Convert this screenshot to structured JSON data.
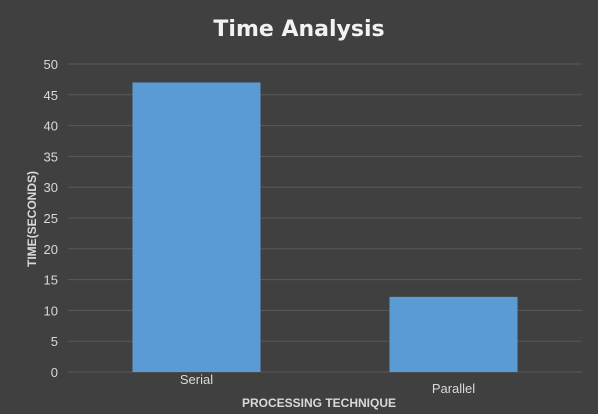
{
  "colors": {
    "background": "#404040",
    "bar": "#5b9bd5",
    "gridline": "#595959",
    "text": "#d9d9d9",
    "title": "#f2f2f2"
  },
  "chart_data": {
    "type": "bar",
    "title": "Time Analysis",
    "xlabel": "PROCESSING TECHNIQUE",
    "ylabel": "TIME(SECONDS)",
    "categories": [
      "Serial",
      "Parallel"
    ],
    "values": [
      47,
      12.2
    ],
    "ylim": [
      0,
      50
    ],
    "yticks": [
      0,
      5,
      10,
      15,
      20,
      25,
      30,
      35,
      40,
      45,
      50
    ],
    "grid": true,
    "legend": "none"
  }
}
